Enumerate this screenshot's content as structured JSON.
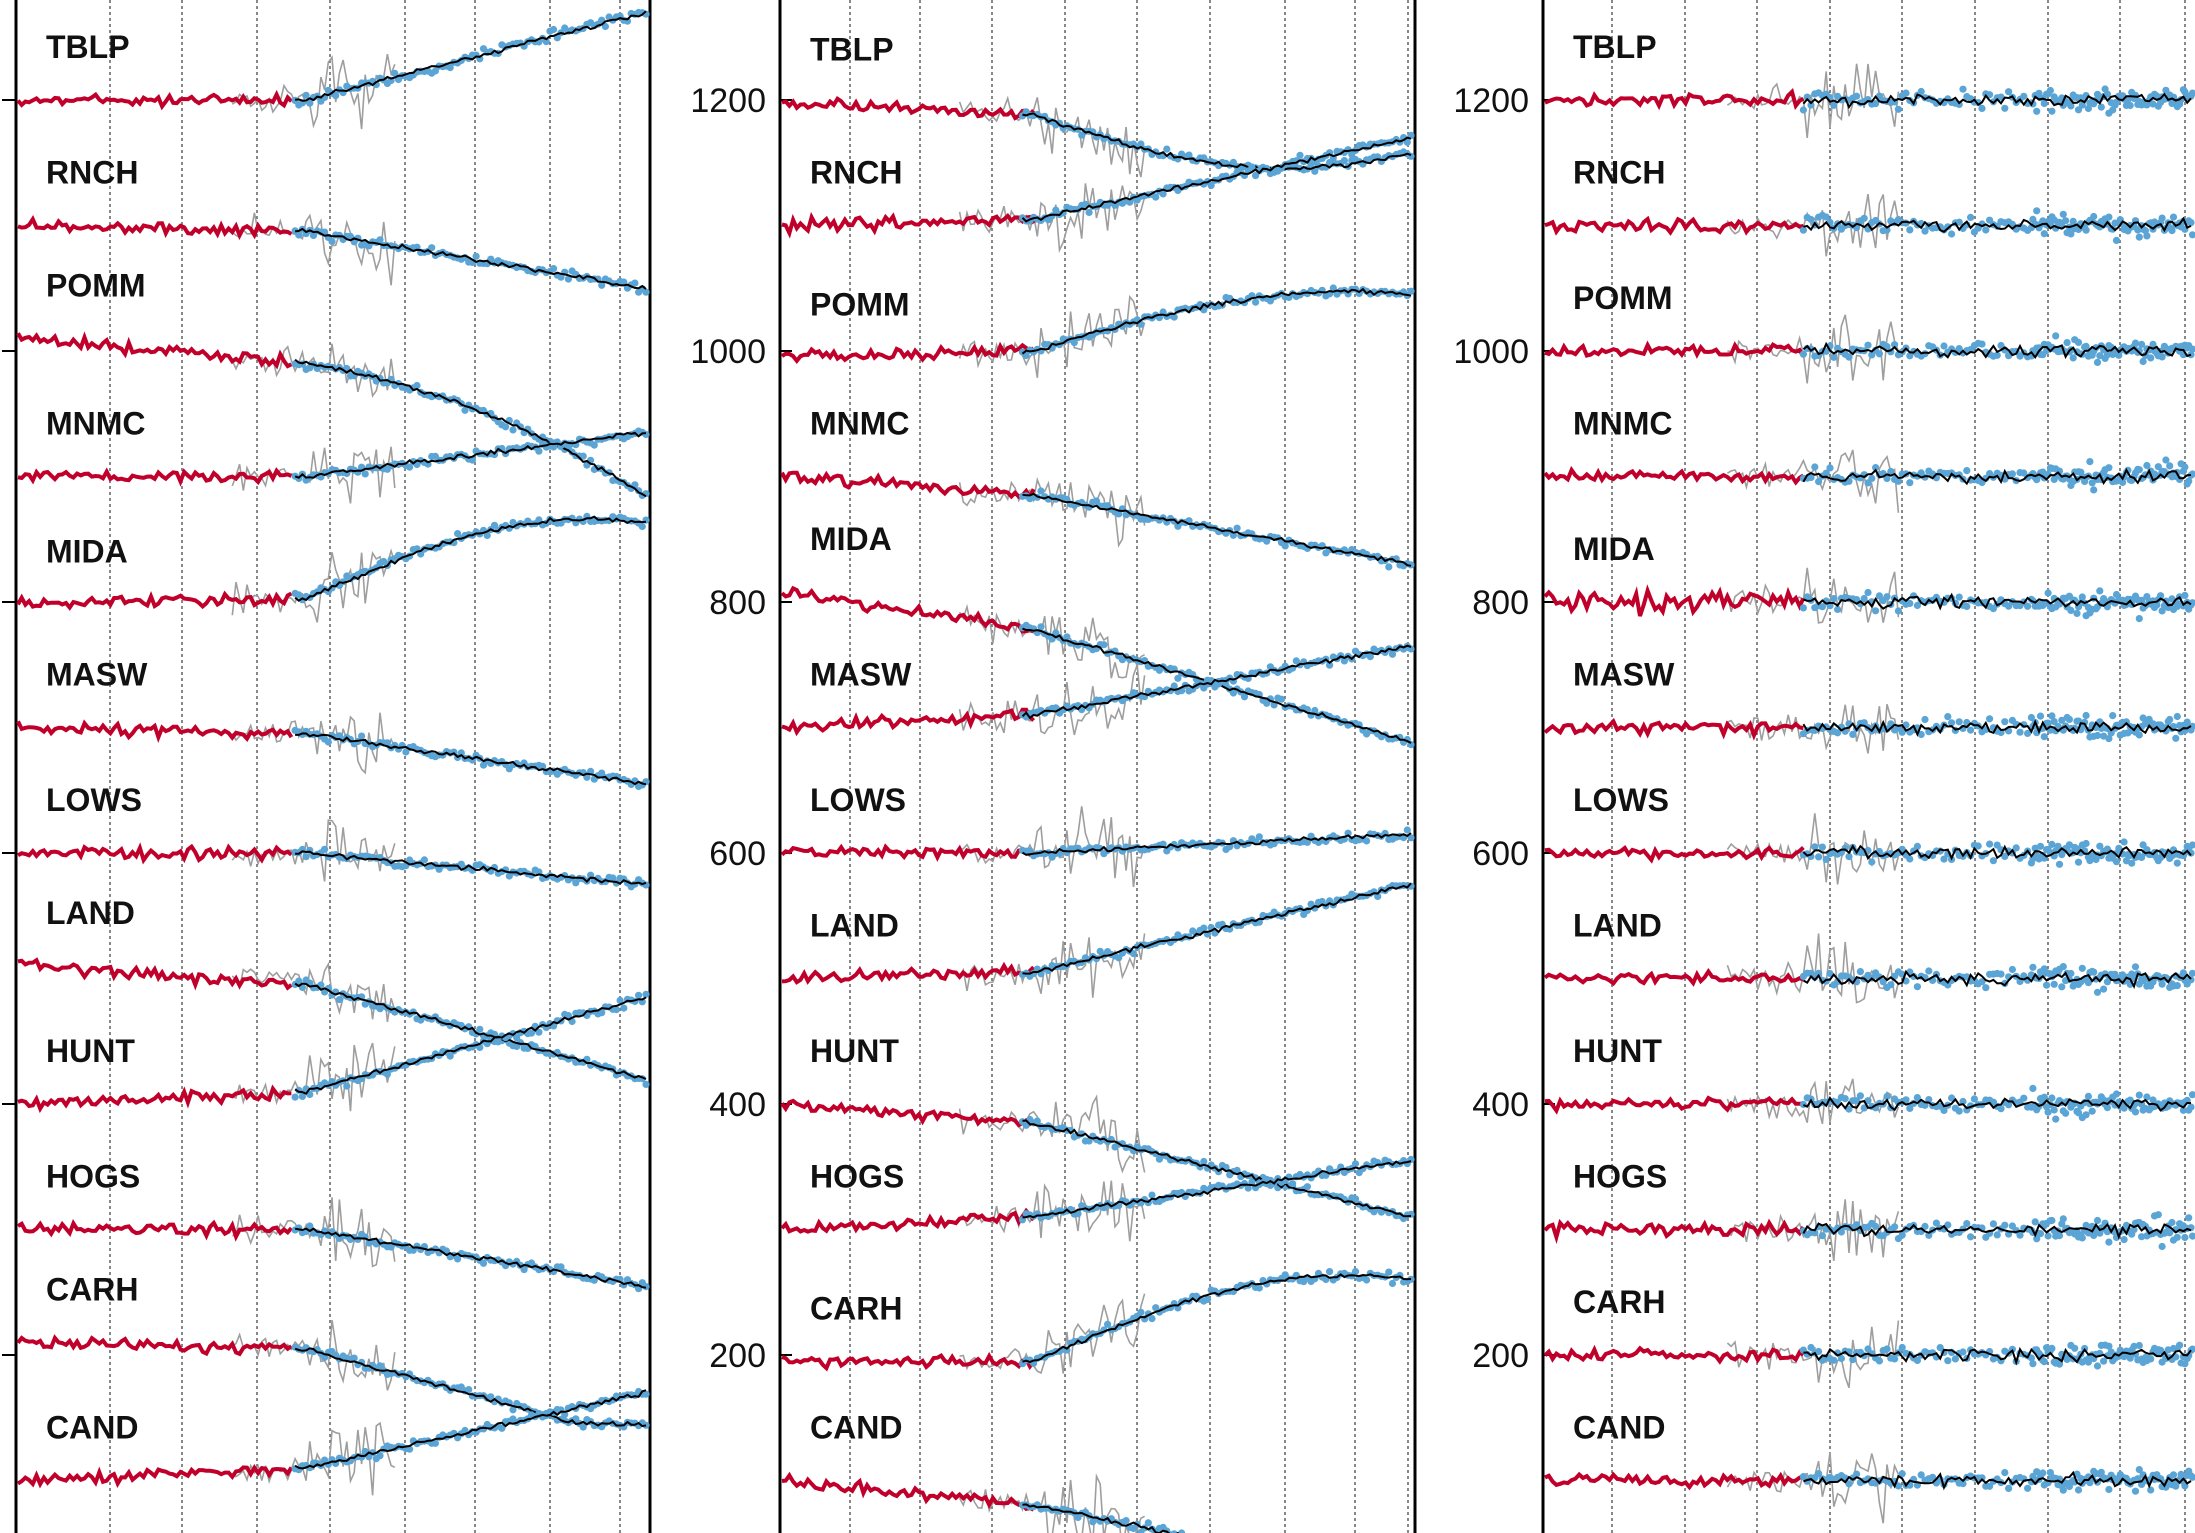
{
  "colors": {
    "red": "#c0002a",
    "blue": "#5aa5d6",
    "gray": "#9e9e9e",
    "black": "#000000"
  },
  "chart_data": [
    {
      "type": "line",
      "panel": "left",
      "y_tick_labels": [
        "",
        "",
        "",
        "",
        "",
        "",
        ""
      ],
      "ylim": [
        0,
        1280
      ],
      "series": [
        {
          "station": "TBLP",
          "baseline": 1200,
          "early_trend": 0,
          "late_offset": 70,
          "late_shape": "rise"
        },
        {
          "station": "RNCH",
          "baseline": 1100,
          "early_trend": -5,
          "late_offset": -45,
          "late_shape": "fall"
        },
        {
          "station": "POMM",
          "baseline": 1010,
          "early_trend": -20,
          "late_offset": -105,
          "late_shape": "fall-accel"
        },
        {
          "station": "MNMC",
          "baseline": 900,
          "early_trend": 0,
          "late_offset": 35,
          "late_shape": "rise"
        },
        {
          "station": "MIDA",
          "baseline": 798,
          "early_trend": 5,
          "late_offset": 60,
          "late_shape": "rise-peak"
        },
        {
          "station": "MASW",
          "baseline": 700,
          "early_trend": -5,
          "late_offset": -40,
          "late_shape": "fall"
        },
        {
          "station": "LOWS",
          "baseline": 600,
          "early_trend": 0,
          "late_offset": -25,
          "late_shape": "fall"
        },
        {
          "station": "LAND",
          "baseline": 510,
          "early_trend": -15,
          "late_offset": -75,
          "late_shape": "fall"
        },
        {
          "station": "HUNT",
          "baseline": 400,
          "early_trend": 10,
          "late_offset": 75,
          "late_shape": "rise"
        },
        {
          "station": "HOGS",
          "baseline": 300,
          "early_trend": 0,
          "late_offset": -45,
          "late_shape": "fall"
        },
        {
          "station": "CARH",
          "baseline": 210,
          "early_trend": -5,
          "late_offset": -60,
          "late_shape": "fall-flat"
        },
        {
          "station": "CAND",
          "baseline": 100,
          "early_trend": 10,
          "late_offset": 60,
          "late_shape": "rise"
        }
      ]
    },
    {
      "type": "line",
      "panel": "middle",
      "y_tick_labels": [
        "200",
        "400",
        "600",
        "800",
        "1000",
        "1200"
      ],
      "y_ticks": [
        200,
        400,
        600,
        800,
        1000,
        1200
      ],
      "ylim": [
        60,
        1280
      ],
      "series": [
        {
          "station": "TBLP",
          "baseline": 1198,
          "early_trend": -10,
          "late_offset": -30,
          "late_shape": "fall-hook"
        },
        {
          "station": "RNCH",
          "baseline": 1100,
          "early_trend": 5,
          "late_offset": 65,
          "late_shape": "rise"
        },
        {
          "station": "POMM",
          "baseline": 995,
          "early_trend": 5,
          "late_offset": 45,
          "late_shape": "rise-peak"
        },
        {
          "station": "MNMC",
          "baseline": 900,
          "early_trend": -15,
          "late_offset": -55,
          "late_shape": "fall"
        },
        {
          "station": "MIDA",
          "baseline": 808,
          "early_trend": -30,
          "late_offset": -90,
          "late_shape": "fall"
        },
        {
          "station": "MASW",
          "baseline": 700,
          "early_trend": 10,
          "late_offset": 55,
          "late_shape": "rise"
        },
        {
          "station": "LOWS",
          "baseline": 600,
          "early_trend": 0,
          "late_offset": 15,
          "late_shape": "rise"
        },
        {
          "station": "LAND",
          "baseline": 500,
          "early_trend": 5,
          "late_offset": 70,
          "late_shape": "rise"
        },
        {
          "station": "HUNT",
          "baseline": 400,
          "early_trend": -15,
          "late_offset": -75,
          "late_shape": "fall"
        },
        {
          "station": "HOGS",
          "baseline": 300,
          "early_trend": 10,
          "late_offset": 45,
          "late_shape": "rise"
        },
        {
          "station": "CARH",
          "baseline": 195,
          "early_trend": 0,
          "late_offset": 65,
          "late_shape": "rise-peak"
        },
        {
          "station": "CAND",
          "baseline": 100,
          "early_trend": -20,
          "late_offset": -60,
          "late_shape": "fall-steep"
        }
      ]
    },
    {
      "type": "line",
      "panel": "right",
      "y_tick_labels": [
        "200",
        "400",
        "600",
        "800",
        "1000",
        "1200"
      ],
      "y_ticks": [
        200,
        400,
        600,
        800,
        1000,
        1200
      ],
      "ylim": [
        60,
        1280
      ],
      "series": [
        {
          "station": "TBLP",
          "baseline": 1200,
          "early_trend": 0,
          "late_offset": 0,
          "late_shape": "flat"
        },
        {
          "station": "RNCH",
          "baseline": 1100,
          "early_trend": 0,
          "late_offset": 0,
          "late_shape": "flat"
        },
        {
          "station": "POMM",
          "baseline": 1000,
          "early_trend": 0,
          "late_offset": 5,
          "late_shape": "flat"
        },
        {
          "station": "MNMC",
          "baseline": 900,
          "early_trend": 0,
          "late_offset": 0,
          "late_shape": "flat"
        },
        {
          "station": "MIDA",
          "baseline": 800,
          "early_trend": 0,
          "late_offset": 10,
          "late_shape": "flat"
        },
        {
          "station": "MASW",
          "baseline": 700,
          "early_trend": 0,
          "late_offset": 0,
          "late_shape": "flat"
        },
        {
          "station": "LOWS",
          "baseline": 600,
          "early_trend": 0,
          "late_offset": 0,
          "late_shape": "flat"
        },
        {
          "station": "LAND",
          "baseline": 500,
          "early_trend": 0,
          "late_offset": 0,
          "late_shape": "flat"
        },
        {
          "station": "HUNT",
          "baseline": 400,
          "early_trend": 0,
          "late_offset": 0,
          "late_shape": "flat"
        },
        {
          "station": "HOGS",
          "baseline": 300,
          "early_trend": 0,
          "late_offset": 0,
          "late_shape": "flat"
        },
        {
          "station": "CARH",
          "baseline": 200,
          "early_trend": 0,
          "late_offset": 0,
          "late_shape": "flat"
        },
        {
          "station": "CAND",
          "baseline": 100,
          "early_trend": 0,
          "late_offset": 0,
          "late_shape": "flat"
        }
      ]
    }
  ],
  "legend": "none",
  "grid": "vertical dashed lines"
}
